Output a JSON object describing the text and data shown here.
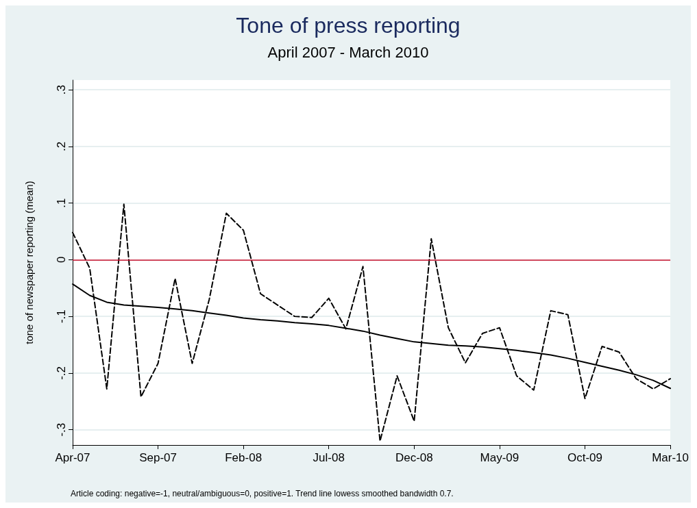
{
  "chart_data": {
    "type": "line",
    "title": "Tone of press reporting",
    "subtitle": "April 2007 - March 2010",
    "ylabel": "tone of newspaper reporting (mean)",
    "categories": [
      "Apr-07",
      null,
      null,
      null,
      null,
      "Sep-07",
      null,
      null,
      null,
      null,
      "Feb-08",
      null,
      null,
      null,
      null,
      "Jul-08",
      null,
      null,
      null,
      null,
      "Dec-08",
      null,
      null,
      null,
      null,
      "May-09",
      null,
      null,
      null,
      null,
      "Oct-09",
      null,
      null,
      null,
      null,
      "Mar-10"
    ],
    "series": [
      {
        "color": "#000000",
        "line_style": "dashed",
        "values": [
          0.048,
          -0.015,
          -0.228,
          0.098,
          -0.242,
          -0.183,
          -0.033,
          -0.183,
          -0.07,
          0.082,
          0.052,
          -0.06,
          -0.08,
          -0.1,
          -0.102,
          -0.068,
          -0.122,
          -0.012,
          -0.32,
          -0.205,
          -0.285,
          0.037,
          -0.12,
          -0.182,
          -0.13,
          -0.12,
          -0.205,
          -0.23,
          -0.09,
          -0.097,
          -0.245,
          -0.153,
          -0.163,
          -0.21,
          -0.228,
          -0.21
        ]
      },
      {
        "color": "#000000",
        "line_style": "solid",
        "values": [
          -0.043,
          -0.063,
          -0.075,
          -0.08,
          -0.082,
          -0.084,
          -0.087,
          -0.09,
          -0.094,
          -0.098,
          -0.103,
          -0.106,
          -0.108,
          -0.111,
          -0.113,
          -0.116,
          -0.121,
          -0.126,
          -0.133,
          -0.139,
          -0.145,
          -0.148,
          -0.151,
          -0.152,
          -0.154,
          -0.157,
          -0.16,
          -0.164,
          -0.168,
          -0.174,
          -0.181,
          -0.188,
          -0.195,
          -0.203,
          -0.213,
          -0.227
        ]
      }
    ],
    "ylim": [
      -0.327,
      0.317
    ],
    "yticks": [
      {
        "value": -0.3,
        "label": "-.3"
      },
      {
        "value": -0.2,
        "label": "-.2"
      },
      {
        "value": -0.1,
        "label": "-.1"
      },
      0,
      {
        "value": 0.1,
        "label": ".1"
      },
      {
        "value": 0.2,
        "label": ".2"
      },
      {
        "value": 0.3,
        "label": ".3"
      }
    ],
    "grid": "y",
    "marker": "none",
    "ref_lines": [
      {
        "axis": "y",
        "value": 0,
        "color": "#c8102e"
      }
    ],
    "annotations": [
      "Article coding: negative=-1, neutral/ambiguous=0, positive=1. Trend line lowess smoothed bandwidth 0.7."
    ]
  }
}
